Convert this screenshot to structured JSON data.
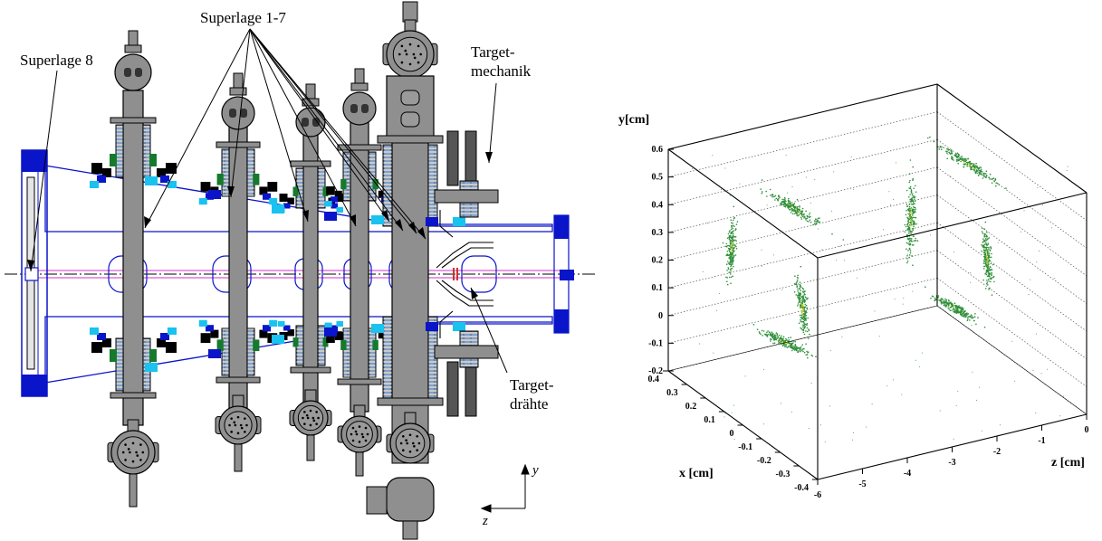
{
  "schematic": {
    "labels": {
      "superlayer8": "Superlage 8",
      "superlayers17": "Superlage 1-7",
      "targetmech_1": "Target-",
      "targetmech_2": "mechanik",
      "targetwires_1": "Target-",
      "targetwires_2": "drähte"
    },
    "axes": {
      "y": "y",
      "z": "z"
    },
    "colors": {
      "steel": "#8f8f8f",
      "dark": "#555555",
      "blue": "#0a14c8",
      "cyan": "#19c2ef",
      "green": "#157a2c",
      "beam": "#cc33cc",
      "coil": "#9dc8ff"
    }
  },
  "plot": {
    "axis_titles": {
      "y": "y[cm]",
      "x": "x [cm]",
      "z": "z [cm]"
    },
    "y_ticks": [
      "-0.2",
      "-0.1",
      "0",
      "0.1",
      "0.2",
      "0.3",
      "0.4",
      "0.5",
      "0.6"
    ],
    "x_ticks": [
      "-0.4",
      "-0.3",
      "-0.2",
      "-0.1",
      "0",
      "0.1",
      "0.2",
      "0.3",
      "0.4"
    ],
    "z_ticks": [
      "-6",
      "-5",
      "-4",
      "-3",
      "-2",
      "-1",
      "0"
    ],
    "point_color": "#2f8f3a",
    "core_color": "#c9d22a"
  }
}
